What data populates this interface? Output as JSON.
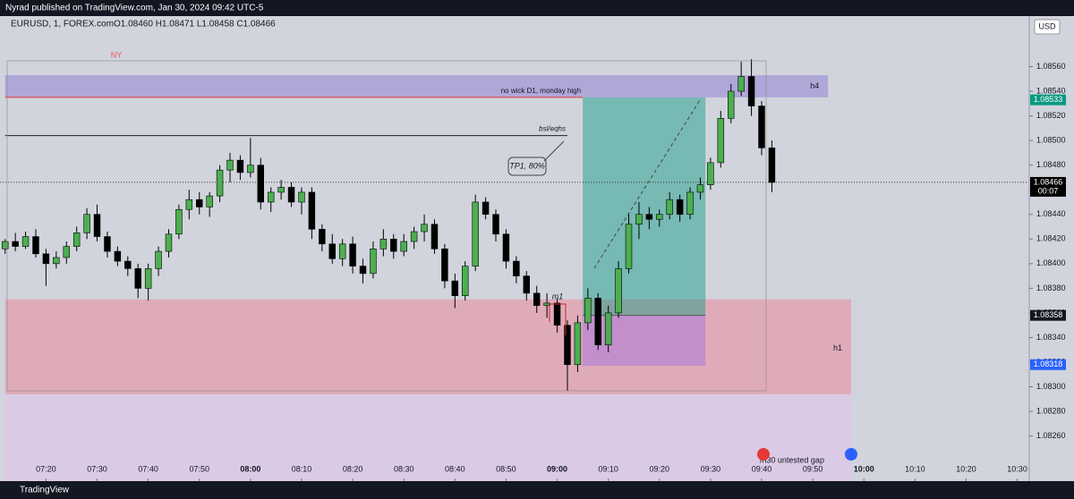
{
  "header": {
    "publisher": "Nyrad published on TradingView.com, Jan 30, 2024 09:42 UTC-5",
    "symbol": "EURUSD, 1, FOREX.com",
    "ohlc": "O1.08460 H1.08471 L1.08458 C1.08466",
    "brand": "TradingView"
  },
  "chart_data": {
    "type": "candlestick",
    "currency": "USD",
    "up_color": "#4caf50",
    "down_color": "#000000",
    "xlim": [
      431,
      632
    ],
    "ylim": [
      1.08222,
      1.08601
    ],
    "xticks": [
      {
        "value": 440,
        "label": "07:20"
      },
      {
        "value": 450,
        "label": "07:30"
      },
      {
        "value": 460,
        "label": "07:40"
      },
      {
        "value": 470,
        "label": "07:50"
      },
      {
        "value": 480,
        "label": "08:00"
      },
      {
        "value": 490,
        "label": "08:10"
      },
      {
        "value": 500,
        "label": "08:20"
      },
      {
        "value": 510,
        "label": "08:30"
      },
      {
        "value": 520,
        "label": "08:40"
      },
      {
        "value": 530,
        "label": "08:50"
      },
      {
        "value": 540,
        "label": "09:00"
      },
      {
        "value": 550,
        "label": "09:10"
      },
      {
        "value": 560,
        "label": "09:20"
      },
      {
        "value": 570,
        "label": "09:30"
      },
      {
        "value": 580,
        "label": "09:40"
      },
      {
        "value": 590,
        "label": "09:50"
      },
      {
        "value": 600,
        "label": "10:00"
      },
      {
        "value": 610,
        "label": "10:10"
      },
      {
        "value": 620,
        "label": "10:20"
      },
      {
        "value": 630,
        "label": "10:30"
      }
    ],
    "yticks": [
      {
        "value": 1.0856,
        "label": "1.08560"
      },
      {
        "value": 1.0854,
        "label": "1.08540"
      },
      {
        "value": 1.0852,
        "label": "1.08520"
      },
      {
        "value": 1.085,
        "label": "1.08500"
      },
      {
        "value": 1.0848,
        "label": "1.08480"
      },
      {
        "value": 1.0846,
        "label": "1.08460"
      },
      {
        "value": 1.0844,
        "label": "1.08440"
      },
      {
        "value": 1.0842,
        "label": "1.08420"
      },
      {
        "value": 1.084,
        "label": "1.08400"
      },
      {
        "value": 1.0838,
        "label": "1.08380"
      },
      {
        "value": 1.0836,
        "label": "1.08360"
      },
      {
        "value": 1.0834,
        "label": "1.08340"
      },
      {
        "value": 1.0832,
        "label": "1.08320"
      },
      {
        "value": 1.083,
        "label": "1.08300"
      },
      {
        "value": 1.0828,
        "label": "1.08280"
      },
      {
        "value": 1.0826,
        "label": "1.08260"
      }
    ],
    "x": [
      432,
      434,
      436,
      438,
      440,
      442,
      444,
      446,
      448,
      450,
      452,
      454,
      456,
      458,
      460,
      462,
      464,
      466,
      468,
      470,
      472,
      474,
      476,
      478,
      480,
      482,
      484,
      486,
      488,
      490,
      492,
      494,
      496,
      498,
      500,
      502,
      504,
      506,
      508,
      510,
      512,
      514,
      516,
      518,
      520,
      522,
      524,
      526,
      528,
      530,
      532,
      534,
      536,
      538,
      540,
      542,
      544,
      546,
      548,
      550,
      552,
      554,
      556,
      558,
      560,
      562,
      564,
      566,
      568,
      570,
      572,
      574,
      576,
      578,
      580,
      582
    ],
    "open": [
      1.08412,
      1.08418,
      1.08414,
      1.08422,
      1.08408,
      1.084,
      1.08405,
      1.08414,
      1.08425,
      1.0844,
      1.08422,
      1.0841,
      1.08402,
      1.08396,
      1.0838,
      1.08396,
      1.0841,
      1.08424,
      1.08444,
      1.08452,
      1.08446,
      1.08455,
      1.08476,
      1.08484,
      1.08474,
      1.0848,
      1.0845,
      1.08458,
      1.08462,
      1.0845,
      1.08458,
      1.08428,
      1.08416,
      1.08404,
      1.08416,
      1.08398,
      1.08392,
      1.08412,
      1.0842,
      1.0841,
      1.08418,
      1.08426,
      1.08432,
      1.08412,
      1.08386,
      1.08374,
      1.08398,
      1.0845,
      1.0844,
      1.08424,
      1.08402,
      1.0839,
      1.08376,
      1.08366,
      1.08368,
      1.0835,
      1.08318,
      1.08352,
      1.08372,
      1.08334,
      1.0836,
      1.08396,
      1.08432,
      1.0844,
      1.08436,
      1.0844,
      1.08452,
      1.0844,
      1.08458,
      1.08464,
      1.08482,
      1.08518,
      1.0854,
      1.08552,
      1.08528,
      1.08494
    ],
    "high": [
      1.0842,
      1.08425,
      1.08426,
      1.08428,
      1.08412,
      1.0841,
      1.08418,
      1.0843,
      1.08445,
      1.08448,
      1.08426,
      1.08414,
      1.08406,
      1.084,
      1.084,
      1.08414,
      1.08428,
      1.08448,
      1.0846,
      1.08458,
      1.08458,
      1.0848,
      1.0849,
      1.08488,
      1.08502,
      1.08486,
      1.08462,
      1.08468,
      1.08466,
      1.08462,
      1.08462,
      1.08432,
      1.08424,
      1.0842,
      1.08422,
      1.08404,
      1.08418,
      1.08428,
      1.08424,
      1.08424,
      1.0843,
      1.0844,
      1.08436,
      1.08416,
      1.08392,
      1.08402,
      1.08456,
      1.08454,
      1.08444,
      1.08428,
      1.08406,
      1.08394,
      1.08382,
      1.08376,
      1.08372,
      1.08354,
      1.08358,
      1.0838,
      1.08376,
      1.08366,
      1.08402,
      1.0844,
      1.0845,
      1.08446,
      1.08444,
      1.08458,
      1.08456,
      1.08462,
      1.0847,
      1.08486,
      1.08524,
      1.08546,
      1.08564,
      1.08566,
      1.08532,
      1.085
    ],
    "low": [
      1.08408,
      1.0841,
      1.08412,
      1.08405,
      1.08382,
      1.08396,
      1.084,
      1.0841,
      1.0842,
      1.08418,
      1.08405,
      1.08398,
      1.0839,
      1.08372,
      1.0837,
      1.0839,
      1.08405,
      1.0842,
      1.08436,
      1.0844,
      1.08438,
      1.0845,
      1.08466,
      1.08468,
      1.0847,
      1.08444,
      1.08442,
      1.08452,
      1.08446,
      1.0844,
      1.0842,
      1.0841,
      1.084,
      1.08398,
      1.08392,
      1.08384,
      1.08388,
      1.08406,
      1.08404,
      1.08406,
      1.08412,
      1.08418,
      1.08408,
      1.0838,
      1.08364,
      1.0837,
      1.08394,
      1.08436,
      1.08418,
      1.08396,
      1.08384,
      1.0837,
      1.0836,
      1.08356,
      1.08344,
      1.08297,
      1.08312,
      1.08346,
      1.0833,
      1.08328,
      1.08356,
      1.08392,
      1.0842,
      1.08428,
      1.0843,
      1.08436,
      1.08434,
      1.08436,
      1.08452,
      1.0846,
      1.08478,
      1.08514,
      1.08536,
      1.0852,
      1.08488,
      1.08458
    ],
    "close": [
      1.08418,
      1.08414,
      1.08422,
      1.08408,
      1.084,
      1.08405,
      1.08414,
      1.08425,
      1.0844,
      1.08422,
      1.0841,
      1.08402,
      1.08396,
      1.0838,
      1.08396,
      1.0841,
      1.08424,
      1.08444,
      1.08452,
      1.08446,
      1.08455,
      1.08476,
      1.08484,
      1.08474,
      1.0848,
      1.0845,
      1.08458,
      1.08462,
      1.0845,
      1.08458,
      1.08428,
      1.08416,
      1.08404,
      1.08416,
      1.08398,
      1.08392,
      1.08412,
      1.0842,
      1.0841,
      1.08418,
      1.08426,
      1.08432,
      1.08412,
      1.08386,
      1.08374,
      1.08398,
      1.0845,
      1.0844,
      1.08424,
      1.08402,
      1.0839,
      1.08376,
      1.08366,
      1.08368,
      1.0835,
      1.08318,
      1.08352,
      1.08372,
      1.08334,
      1.0836,
      1.08396,
      1.08432,
      1.0844,
      1.08436,
      1.0844,
      1.08452,
      1.0844,
      1.08458,
      1.08464,
      1.08482,
      1.08518,
      1.0854,
      1.08552,
      1.08528,
      1.08494,
      1.08466
    ],
    "zones": [
      {
        "label": "h4",
        "time": [
          432,
          593
        ],
        "price": [
          1.08535,
          1.08553
        ],
        "color": "rgba(150,130,215,0.55)"
      },
      {
        "label": "h1",
        "time": [
          432,
          597.5
        ],
        "price": [
          1.08294,
          1.08371
        ],
        "color": "rgba(240,130,150,0.5)"
      },
      {
        "label": "m30 untested gap",
        "time": [
          432,
          597.5
        ],
        "price": [
          1.08222,
          1.08294
        ],
        "color": "rgba(225,195,235,0.6)"
      }
    ],
    "levels": [
      {
        "label": "no wick D1, monday high",
        "price": 1.08535,
        "time": [
          432,
          545
        ],
        "color": "#e53935"
      },
      {
        "label": "bsl/eqhs",
        "price": 1.08504,
        "time": [
          432,
          542
        ],
        "color": "#222222"
      }
    ],
    "position": {
      "start": 545,
      "end": 569,
      "entry": 1.08358,
      "target": 1.08535,
      "stop": 1.08317
    },
    "price_tags": [
      {
        "value": 1.08533,
        "color": "#089981"
      },
      {
        "value": 1.08466,
        "color": "#000000",
        "countdown": "00:07"
      },
      {
        "value": 1.08358,
        "color": "#131722"
      },
      {
        "value": 1.08318,
        "color": "#2962ff"
      }
    ],
    "annotations": {
      "session": "NY",
      "callout": "TP1, 80%",
      "entry_tf": "m1"
    }
  }
}
